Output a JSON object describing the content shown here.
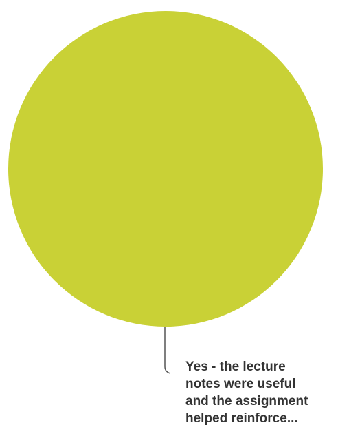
{
  "chart_data": {
    "type": "pie",
    "slices": [
      {
        "label": "Yes - the lecture notes were useful and the assignment helped reinforce...",
        "label_lines": [
          "Yes - the lecture",
          "notes were useful",
          "and the assignment",
          "helped reinforce..."
        ],
        "value": 100,
        "color": "#c9d136"
      }
    ],
    "legend": "none"
  }
}
